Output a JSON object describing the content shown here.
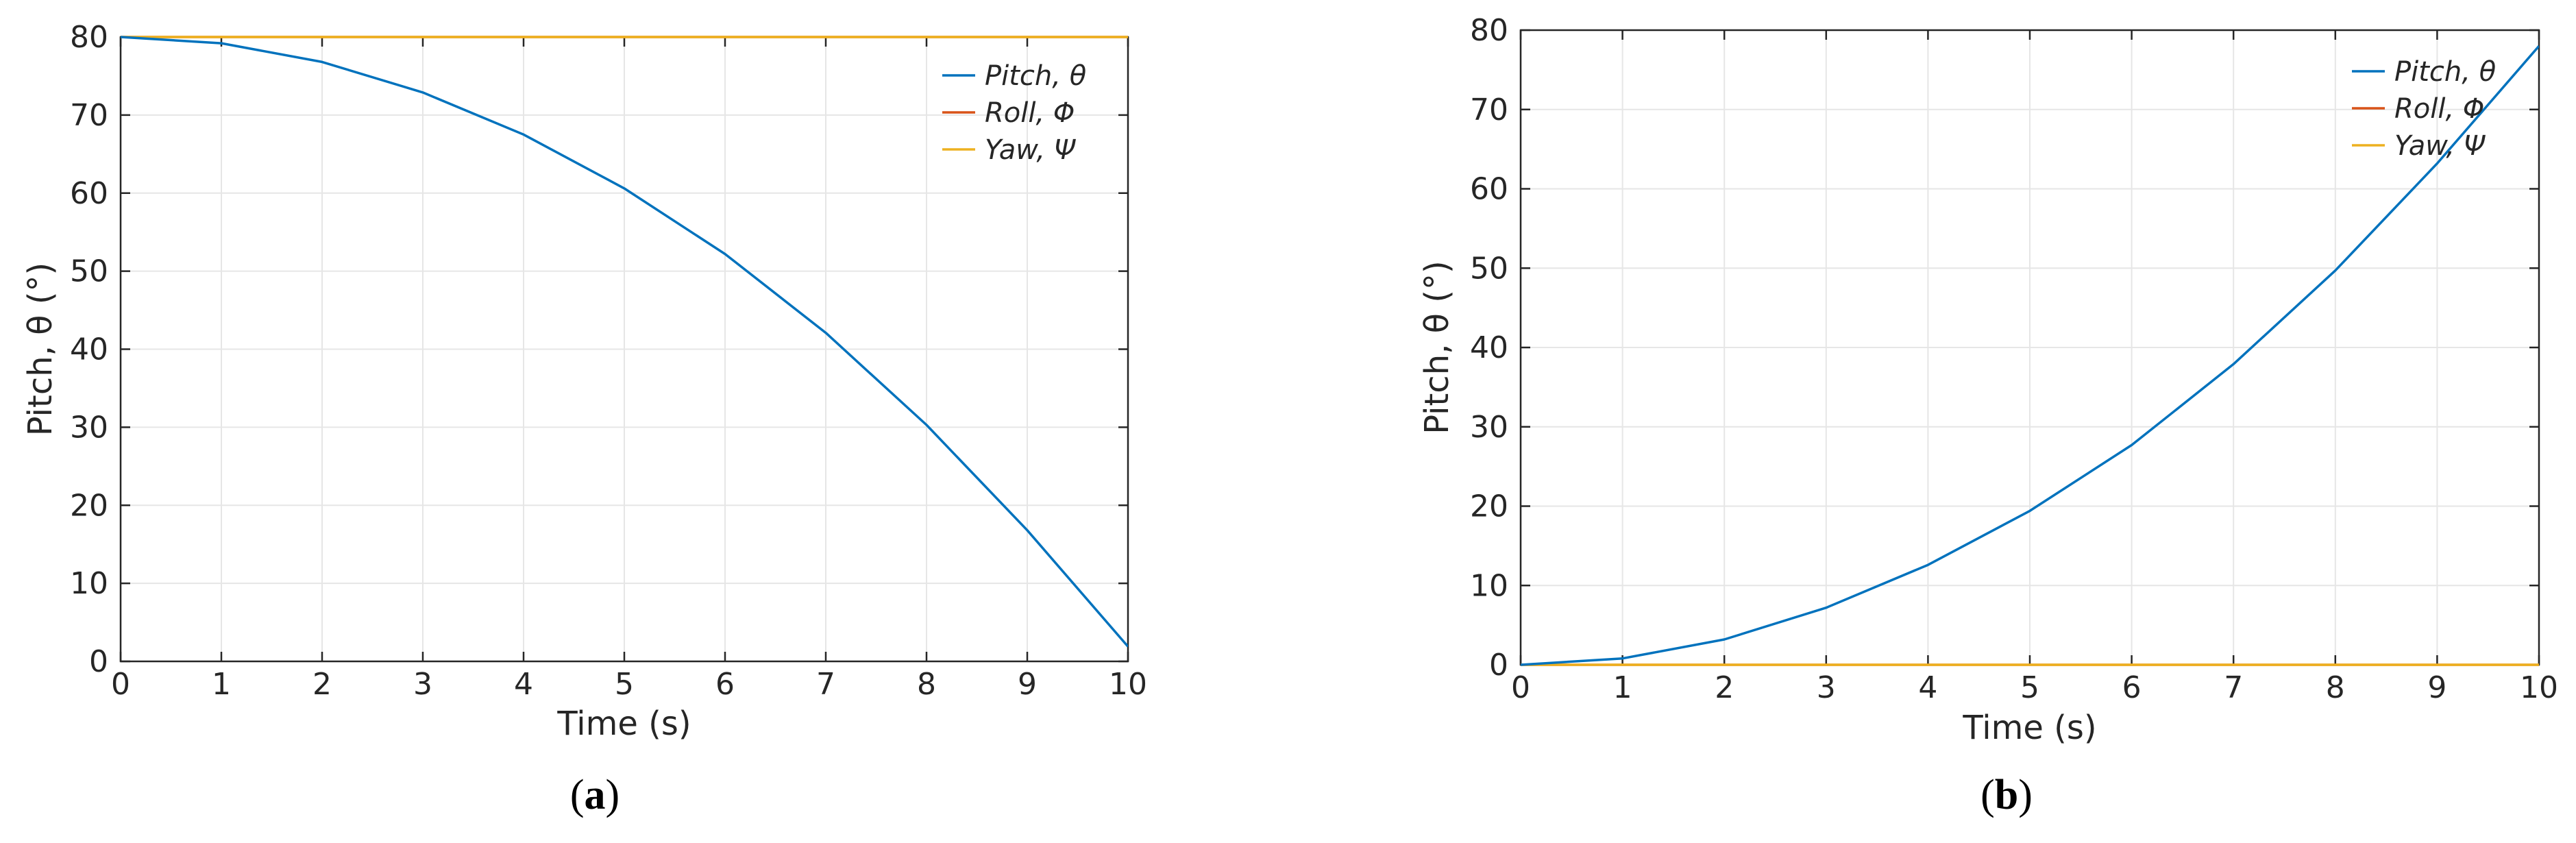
{
  "chart_data": [
    {
      "panel_label": "a",
      "type": "line",
      "xlabel": "Time (s)",
      "ylabel": "Pitch, θ (°)",
      "xlim": [
        0,
        10
      ],
      "ylim": [
        0,
        80
      ],
      "xticks": [
        "0",
        "1",
        "2",
        "3",
        "4",
        "5",
        "6",
        "7",
        "8",
        "9",
        "10"
      ],
      "yticks": [
        "0",
        "10",
        "20",
        "30",
        "40",
        "50",
        "60",
        "70",
        "80"
      ],
      "grid": true,
      "legend_position": "top-right",
      "x": [
        0,
        1,
        2,
        3,
        4,
        5,
        6,
        7,
        8,
        9,
        10
      ],
      "series": [
        {
          "name": "Pitch, θ",
          "color": "#0072BD",
          "values": [
            80,
            79.2,
            76.8,
            72.9,
            67.5,
            60.6,
            52.2,
            42.1,
            30.3,
            16.8,
            1.9
          ]
        },
        {
          "name": "Roll, Φ",
          "color": "#D95319",
          "values": [
            80,
            80,
            80,
            80,
            80,
            80,
            80,
            80,
            80,
            80,
            80
          ]
        },
        {
          "name": "Yaw, Ψ",
          "color": "#EDB120",
          "values": [
            80,
            80,
            80,
            80,
            80,
            80,
            80,
            80,
            80,
            80,
            80
          ]
        }
      ]
    },
    {
      "panel_label": "b",
      "type": "line",
      "xlabel": "Time (s)",
      "ylabel": "Pitch, θ (°)",
      "xlim": [
        0,
        10
      ],
      "ylim": [
        0,
        80
      ],
      "xticks": [
        "0",
        "1",
        "2",
        "3",
        "4",
        "5",
        "6",
        "7",
        "8",
        "9",
        "10"
      ],
      "yticks": [
        "0",
        "10",
        "20",
        "30",
        "40",
        "50",
        "60",
        "70",
        "80"
      ],
      "grid": true,
      "legend_position": "top-right",
      "x": [
        0,
        1,
        2,
        3,
        4,
        5,
        6,
        7,
        8,
        9,
        10
      ],
      "series": [
        {
          "name": "Pitch, θ",
          "color": "#0072BD",
          "values": [
            0,
            0.8,
            3.2,
            7.2,
            12.6,
            19.4,
            27.7,
            37.9,
            49.7,
            63.2,
            78
          ]
        },
        {
          "name": "Roll, Φ",
          "color": "#D95319",
          "values": [
            0,
            0,
            0,
            0,
            0,
            0,
            0,
            0,
            0,
            0,
            0
          ]
        },
        {
          "name": "Yaw, Ψ",
          "color": "#EDB120",
          "values": [
            0,
            0,
            0,
            0,
            0,
            0,
            0,
            0,
            0,
            0,
            0
          ]
        }
      ]
    }
  ]
}
